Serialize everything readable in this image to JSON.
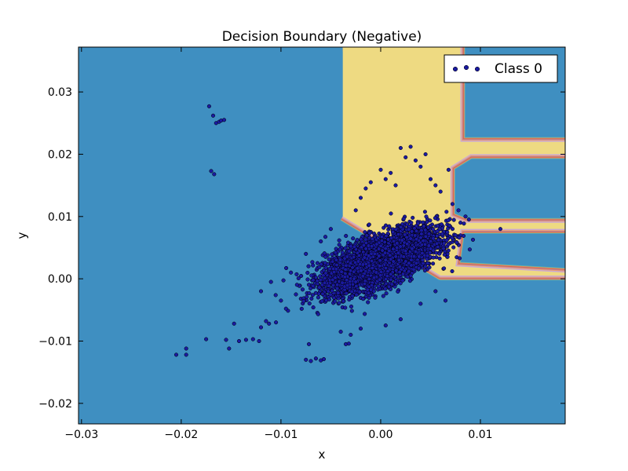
{
  "chart_data": {
    "type": "scatter",
    "title": "Decision Boundary (Negative)",
    "xlabel": "x",
    "ylabel": "y",
    "xlim": [
      -0.0303,
      0.0185
    ],
    "ylim": [
      -0.0233,
      0.0372
    ],
    "x_ticks": [
      -0.03,
      -0.02,
      -0.01,
      0.0,
      0.01
    ],
    "x_tick_labels": [
      "−0.03",
      "−0.02",
      "−0.01",
      "0.00",
      "0.01"
    ],
    "y_ticks": [
      -0.02,
      -0.01,
      0.0,
      0.01,
      0.02,
      0.03
    ],
    "y_tick_labels": [
      "−0.02",
      "−0.01",
      "0.00",
      "0.01",
      "0.02",
      "0.03"
    ],
    "grid": false,
    "legend": {
      "position": "top-right",
      "entries": [
        "Class 0"
      ]
    },
    "series": [
      {
        "name": "Class 0",
        "marker_color": "#1a1aa0",
        "marker_edge": "#000000",
        "cluster": {
          "center": [
            0.0,
            0.003
          ],
          "spread": [
            0.0028,
            0.0035
          ],
          "count": 4200
        },
        "points": [
          [
            -0.0172,
            0.0277
          ],
          [
            -0.0168,
            0.0262
          ],
          [
            -0.0165,
            0.025
          ],
          [
            -0.0162,
            0.0252
          ],
          [
            -0.016,
            0.0254
          ],
          [
            -0.0157,
            0.0255
          ],
          [
            -0.017,
            0.0173
          ],
          [
            -0.0167,
            0.0168
          ],
          [
            -0.0195,
            -0.0112
          ],
          [
            -0.0195,
            -0.0122
          ],
          [
            -0.0205,
            -0.0122
          ],
          [
            -0.0175,
            -0.0097
          ],
          [
            -0.0155,
            -0.0098
          ],
          [
            -0.0152,
            -0.0112
          ],
          [
            -0.0147,
            -0.0072
          ],
          [
            -0.0142,
            -0.01
          ],
          [
            -0.0135,
            -0.0098
          ],
          [
            -0.0128,
            -0.0097
          ],
          [
            -0.0122,
            -0.01
          ],
          [
            -0.012,
            -0.0078
          ],
          [
            -0.0115,
            -0.0068
          ],
          [
            -0.0112,
            -0.0072
          ],
          [
            -0.0105,
            -0.007
          ],
          [
            -0.0072,
            -0.0105
          ],
          [
            -0.0075,
            -0.013
          ],
          [
            -0.007,
            -0.0132
          ],
          [
            -0.0065,
            -0.0128
          ],
          [
            -0.006,
            -0.0131
          ],
          [
            -0.0057,
            -0.0129
          ],
          [
            -0.0035,
            -0.0105
          ],
          [
            -0.0032,
            -0.0104
          ],
          [
            -0.0025,
            0.011
          ],
          [
            -0.002,
            0.013
          ],
          [
            -0.0015,
            0.0145
          ],
          [
            -0.001,
            0.0155
          ],
          [
            0.0,
            0.0175
          ],
          [
            0.0005,
            0.016
          ],
          [
            0.001,
            0.017
          ],
          [
            0.0015,
            0.015
          ],
          [
            0.002,
            0.021
          ],
          [
            0.0025,
            0.0195
          ],
          [
            0.003,
            0.0212
          ],
          [
            0.0035,
            0.019
          ],
          [
            0.004,
            0.018
          ],
          [
            0.0045,
            0.02
          ],
          [
            0.005,
            0.016
          ],
          [
            0.0055,
            0.015
          ],
          [
            0.006,
            0.014
          ],
          [
            0.0068,
            0.0175
          ],
          [
            0.0072,
            0.012
          ],
          [
            0.0078,
            0.011
          ],
          [
            0.0085,
            0.01
          ],
          [
            0.008,
            0.009
          ],
          [
            0.0075,
            0.007
          ],
          [
            -0.0095,
            -0.0048
          ],
          [
            -0.0085,
            -0.0025
          ],
          [
            -0.009,
            0.001
          ],
          [
            -0.0075,
            0.004
          ],
          [
            -0.006,
            0.006
          ],
          [
            -0.005,
            0.008
          ],
          [
            -0.012,
            -0.002
          ],
          [
            -0.011,
            -0.0005
          ],
          [
            -0.01,
            -0.0035
          ],
          [
            -0.004,
            -0.0085
          ],
          [
            -0.003,
            -0.009
          ],
          [
            -0.002,
            -0.008
          ],
          [
            0.0005,
            -0.0075
          ],
          [
            0.002,
            -0.0065
          ],
          [
            0.004,
            -0.004
          ],
          [
            0.0055,
            -0.002
          ],
          [
            0.0065,
            -0.0035
          ]
        ]
      }
    ],
    "background": {
      "region_colors": {
        "class_0": "#3f8fc1",
        "class_1": "#eeda82"
      },
      "boundary_band_colors": [
        "#5fb3ae",
        "#e68c5c",
        "#d46a4a",
        "#b77fa8",
        "#f3a262",
        "#c9a8d6"
      ]
    }
  }
}
